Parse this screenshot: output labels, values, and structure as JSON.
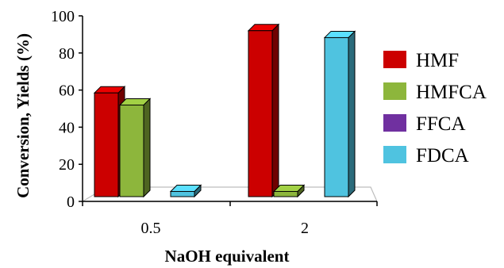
{
  "chart_data": {
    "type": "bar",
    "categories": [
      "0.5",
      "2"
    ],
    "series": [
      {
        "name": "HMF",
        "values": [
          60,
          96
        ],
        "color": "#cc0000"
      },
      {
        "name": "HMFCA",
        "values": [
          53,
          3
        ],
        "color": "#8db63c"
      },
      {
        "name": "FFCA",
        "values": [
          0,
          0
        ],
        "color": "#7030a0"
      },
      {
        "name": "FDCA",
        "values": [
          3,
          92
        ],
        "color": "#4fc3e0"
      }
    ],
    "title": "",
    "xlabel": "NaOH equivalent",
    "ylabel": "Conversion, Yields (%)",
    "ylim": [
      0,
      100
    ],
    "yticks": [
      0,
      20,
      40,
      60,
      80,
      100
    ],
    "style": "3d-clustered-column",
    "legend_position": "right"
  }
}
